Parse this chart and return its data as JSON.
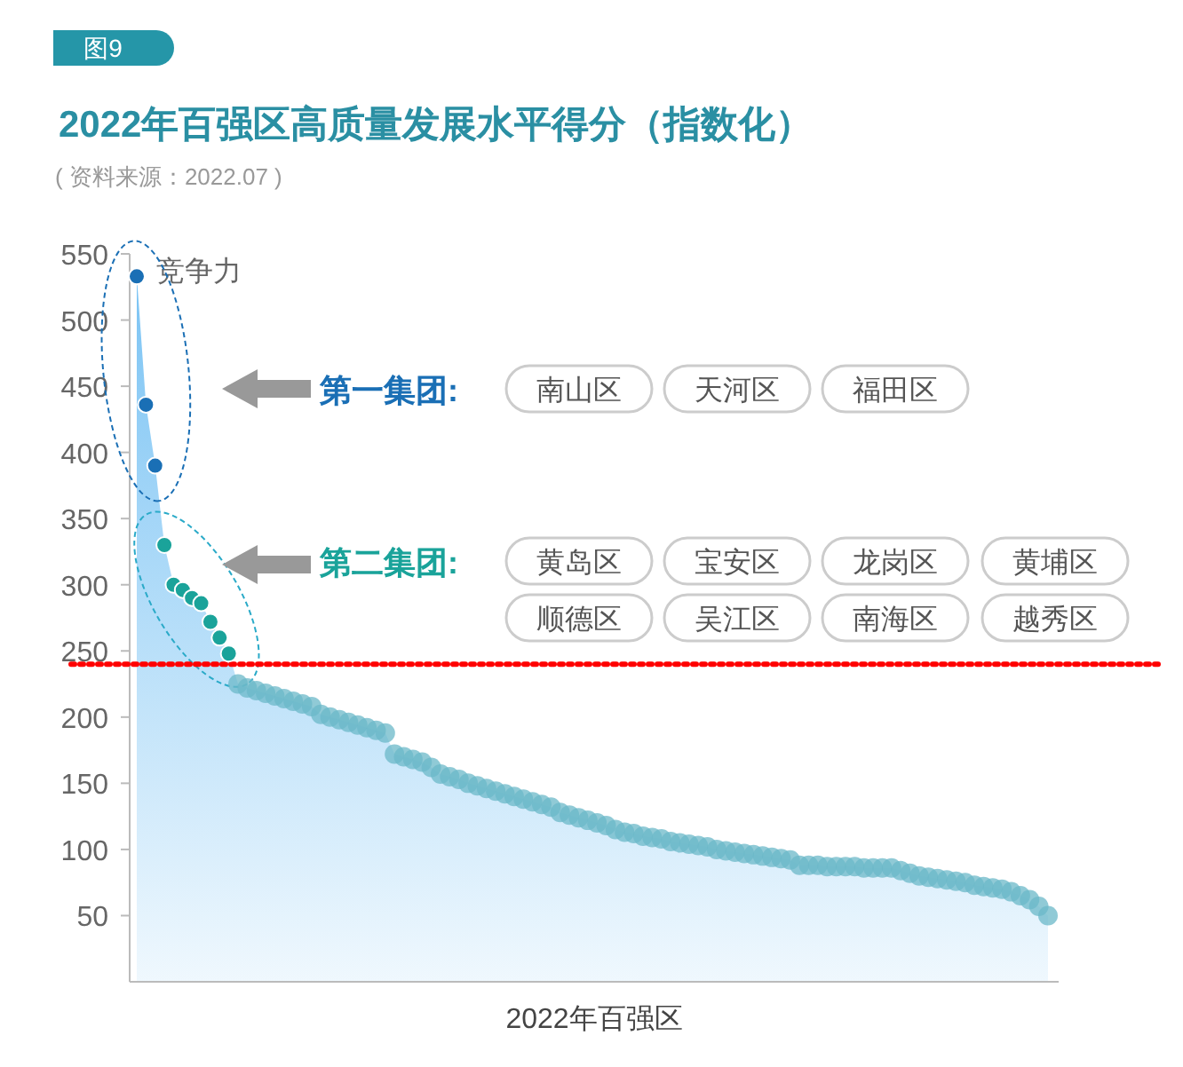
{
  "chart_data": {
    "type": "area",
    "title": "2022年百强区高质量发展水平得分（指数化）",
    "ylabel": "竞争力",
    "xlabel": "2022年百强区",
    "annotations": [
      "图9",
      "( 资料来源：2022.07 )",
      "第一集团:",
      "南山区",
      "天河区",
      "福田区",
      "第二集团:",
      "黄岛区",
      "宝安区",
      "龙岗区",
      "黄埔区",
      "顺德区",
      "吴江区",
      "南海区",
      "越秀区"
    ],
    "categories": [
      null,
      null,
      null,
      null,
      null,
      null,
      null,
      null,
      null,
      null,
      null,
      null,
      null,
      null,
      null,
      null,
      null,
      null,
      null,
      null,
      null,
      null,
      null,
      null,
      null,
      null,
      null,
      null,
      null,
      null,
      null,
      null,
      null,
      null,
      null,
      null,
      null,
      null,
      null,
      null,
      null,
      null,
      null,
      null,
      null,
      null,
      null,
      null,
      null,
      null,
      null,
      null,
      null,
      null,
      null,
      null,
      null,
      null,
      null,
      null,
      null,
      null,
      null,
      null,
      null,
      null,
      null,
      null,
      null,
      null,
      null,
      null,
      null,
      null,
      null,
      null,
      null,
      null,
      null,
      null,
      null,
      null,
      null,
      null,
      null,
      null,
      null,
      null,
      null,
      null,
      null,
      null,
      null,
      null,
      null,
      null,
      null,
      null,
      null,
      null
    ],
    "series": [
      {
        "color": "#7cc4f4",
        "colors": [
          "#1a6fb5",
          "#1a6fb5",
          "#1a6fb5",
          "#1aa39a",
          "#1aa39a",
          "#1aa39a",
          "#1aa39a",
          "#1aa39a",
          "#1aa39a",
          "#1aa39a",
          "#1aa39a",
          "#6bb8c8",
          "#6bb8c8",
          "#6bb8c8",
          "#6bb8c8",
          "#6bb8c8",
          "#6bb8c8",
          "#6bb8c8",
          "#6bb8c8",
          "#6bb8c8",
          "#6bb8c8",
          "#6bb8c8",
          "#6bb8c8",
          "#6bb8c8",
          "#6bb8c8",
          "#6bb8c8",
          "#6bb8c8",
          "#6bb8c8",
          "#6bb8c8",
          "#6bb8c8",
          "#6bb8c8",
          "#6bb8c8",
          "#6bb8c8",
          "#6bb8c8",
          "#6bb8c8",
          "#6bb8c8",
          "#6bb8c8",
          "#6bb8c8",
          "#6bb8c8",
          "#6bb8c8",
          "#6bb8c8",
          "#6bb8c8",
          "#6bb8c8",
          "#6bb8c8",
          "#6bb8c8",
          "#6bb8c8",
          "#6bb8c8",
          "#6bb8c8",
          "#6bb8c8",
          "#6bb8c8",
          "#6bb8c8",
          "#6bb8c8",
          "#6bb8c8",
          "#6bb8c8",
          "#6bb8c8",
          "#6bb8c8",
          "#6bb8c8",
          "#6bb8c8",
          "#6bb8c8",
          "#6bb8c8",
          "#6bb8c8",
          "#6bb8c8",
          "#6bb8c8",
          "#6bb8c8",
          "#6bb8c8",
          "#6bb8c8",
          "#6bb8c8",
          "#6bb8c8",
          "#6bb8c8",
          "#6bb8c8",
          "#6bb8c8",
          "#6bb8c8",
          "#6bb8c8",
          "#6bb8c8",
          "#6bb8c8",
          "#6bb8c8",
          "#6bb8c8",
          "#6bb8c8",
          "#6bb8c8",
          "#6bb8c8",
          "#6bb8c8",
          "#6bb8c8",
          "#6bb8c8",
          "#6bb8c8",
          "#6bb8c8",
          "#6bb8c8",
          "#6bb8c8",
          "#6bb8c8",
          "#6bb8c8",
          "#6bb8c8",
          "#6bb8c8",
          "#6bb8c8",
          "#6bb8c8",
          "#6bb8c8",
          "#6bb8c8",
          "#6bb8c8",
          "#6bb8c8",
          "#6bb8c8",
          "#6bb8c8",
          "#6bb8c8"
        ],
        "values": [
          533,
          436,
          390,
          330,
          300,
          296,
          290,
          286,
          272,
          260,
          248,
          225,
          222,
          220,
          218,
          216,
          214,
          212,
          210,
          208,
          202,
          200,
          198,
          196,
          194,
          192,
          190,
          188,
          172,
          170,
          168,
          166,
          162,
          157,
          155,
          153,
          150,
          148,
          146,
          144,
          142,
          140,
          138,
          136,
          134,
          132,
          128,
          126,
          124,
          122,
          120,
          118,
          115,
          113,
          112,
          110,
          109,
          108,
          106,
          105,
          104,
          103,
          102,
          100,
          99,
          98,
          97,
          96,
          95,
          94,
          93,
          92,
          88,
          88,
          88,
          87,
          87,
          87,
          87,
          86,
          86,
          86,
          86,
          84,
          82,
          80,
          79,
          78,
          77,
          76,
          75,
          73,
          72,
          71,
          70,
          68,
          65,
          62,
          57,
          50
        ]
      }
    ],
    "marker": "circle",
    "ylim": [
      0,
      550
    ],
    "yticks": [
      50,
      100,
      150,
      200,
      250,
      300,
      350,
      400,
      450,
      500,
      550
    ],
    "tick_labels": "y",
    "grid": false,
    "ref_lines": [
      {
        "axis": "y",
        "value": 240,
        "color": "#ff0000",
        "line_style": "dotted"
      }
    ]
  }
}
